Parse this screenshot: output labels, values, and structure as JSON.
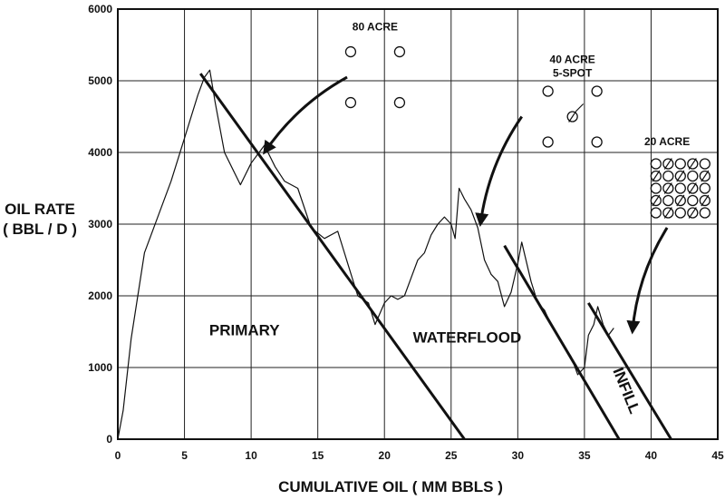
{
  "chart_data": {
    "type": "line",
    "title": "",
    "xlabel": "CUMULATIVE OIL ( MM BBLS )",
    "ylabel_lines": [
      "OIL RATE",
      "( BBL / D )"
    ],
    "xlim": [
      0,
      45
    ],
    "ylim": [
      0,
      6000
    ],
    "x_ticks": [
      0,
      5,
      10,
      15,
      20,
      25,
      30,
      35,
      40,
      45
    ],
    "y_ticks": [
      0,
      1000,
      2000,
      3000,
      4000,
      5000,
      6000
    ],
    "grid": true,
    "series": [
      {
        "points": [
          [
            0,
            0
          ],
          [
            0.4,
            400
          ],
          [
            1,
            1400
          ],
          [
            2,
            2600
          ],
          [
            3,
            3100
          ],
          [
            4,
            3600
          ],
          [
            5,
            4200
          ],
          [
            6,
            4800
          ],
          [
            6.5,
            5050
          ],
          [
            6.9,
            5150
          ],
          [
            7.3,
            4700
          ],
          [
            8,
            4000
          ],
          [
            9.2,
            3550
          ],
          [
            10,
            3850
          ],
          [
            11,
            4100
          ],
          [
            11.8,
            3800
          ],
          [
            12.5,
            3600
          ],
          [
            13.5,
            3500
          ],
          [
            14.5,
            2950
          ],
          [
            15.5,
            2800
          ],
          [
            16.5,
            2900
          ],
          [
            17.5,
            2300
          ],
          [
            18,
            2000
          ],
          [
            18.8,
            1900
          ],
          [
            19.3,
            1600
          ],
          [
            20,
            1900
          ],
          [
            20.5,
            2000
          ],
          [
            21,
            1950
          ],
          [
            21.5,
            2000
          ],
          [
            22,
            2250
          ],
          [
            22.5,
            2500
          ],
          [
            23,
            2600
          ],
          [
            23.5,
            2850
          ],
          [
            24,
            3000
          ],
          [
            24.5,
            3100
          ],
          [
            25,
            3000
          ],
          [
            25.3,
            2800
          ],
          [
            25.6,
            3500
          ],
          [
            26,
            3350
          ],
          [
            26.5,
            3200
          ],
          [
            27,
            2950
          ],
          [
            27.5,
            2500
          ],
          [
            28,
            2300
          ],
          [
            28.5,
            2200
          ],
          [
            29,
            1850
          ],
          [
            29.5,
            2050
          ],
          [
            30,
            2450
          ],
          [
            30.3,
            2750
          ],
          [
            31,
            2200
          ],
          [
            31.5,
            1900
          ],
          [
            32,
            1800
          ],
          [
            32.5,
            1600
          ],
          [
            33,
            1450
          ],
          [
            33.5,
            1300
          ],
          [
            34,
            1150
          ],
          [
            34.5,
            900
          ],
          [
            35,
            1000
          ],
          [
            35.3,
            1450
          ],
          [
            35.7,
            1600
          ],
          [
            36,
            1850
          ],
          [
            36.4,
            1600
          ],
          [
            36.8,
            1450
          ],
          [
            37.2,
            1550
          ]
        ]
      }
    ],
    "decline_lines": [
      {
        "from": [
          6.2,
          5100
        ],
        "to": [
          26,
          0
        ]
      },
      {
        "from": [
          29,
          2700
        ],
        "to": [
          37.6,
          0
        ]
      },
      {
        "from": [
          35.3,
          1900
        ],
        "to": [
          41.5,
          0
        ]
      }
    ],
    "region_labels": [
      {
        "text": "PRIMARY",
        "x": 9.5,
        "y": 1450
      },
      {
        "text": "WATERFLOOD",
        "x": 26.2,
        "y": 1350
      },
      {
        "text": "INFILL",
        "x": 37.8,
        "y": 650,
        "rotate": 68
      }
    ],
    "well_patterns": [
      {
        "label": "80 ACRE",
        "label_at": [
          19.3,
          5700
        ],
        "type": "80acre",
        "center": [
          19.3,
          5050
        ],
        "arrow_from": [
          17.2,
          5050
        ],
        "arrow_to": [
          11,
          4000
        ]
      },
      {
        "label_lines": [
          "40 ACRE",
          "5-SPOT"
        ],
        "label_at": [
          34.1,
          5250
        ],
        "type": "5spot",
        "center": [
          34.1,
          4500
        ],
        "arrow_from": [
          30.3,
          4500
        ],
        "arrow_to": [
          27.2,
          3000
        ]
      },
      {
        "label": "20 ACRE",
        "label_at": [
          41.2,
          4100
        ],
        "type": "20acre",
        "center": [
          42.2,
          3500
        ],
        "arrow_from": [
          41.2,
          2950
        ],
        "arrow_to": [
          38.6,
          1500
        ]
      }
    ]
  }
}
